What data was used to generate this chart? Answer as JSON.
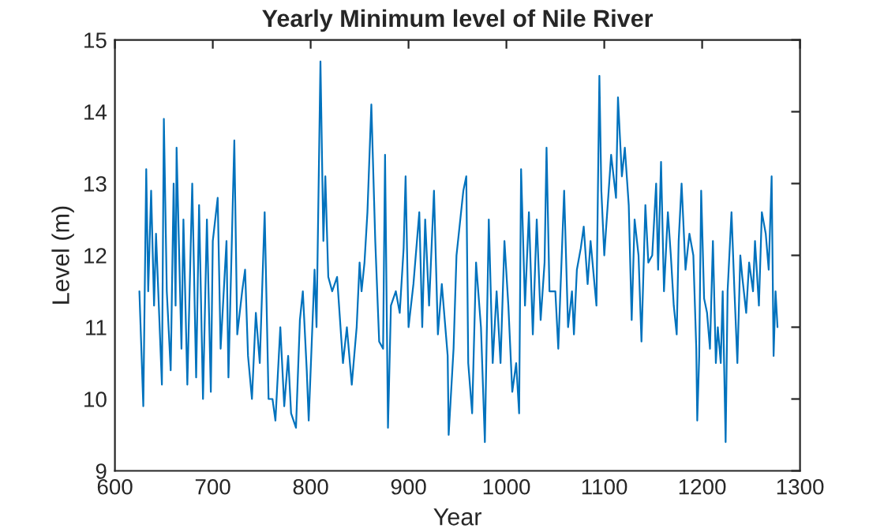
{
  "chart_data": {
    "type": "line",
    "title": "Yearly Minimum level of Nile River",
    "xlabel": "Year",
    "ylabel": "Level (m)",
    "xlim": [
      600,
      1300
    ],
    "xticks": [
      600,
      700,
      800,
      900,
      1000,
      1100,
      1200,
      1300
    ],
    "ylim": [
      9,
      15
    ],
    "yticks": [
      9,
      10,
      11,
      12,
      13,
      14,
      15
    ],
    "grid": false,
    "legend": false,
    "marker": "none",
    "line_style": "solid",
    "series": [
      {
        "color": "#0072bd",
        "x": [
          625,
          629,
          632,
          634,
          637,
          640,
          642,
          648,
          650,
          653,
          657,
          660,
          662,
          663,
          668,
          670,
          674,
          679,
          683,
          686,
          690,
          694,
          698,
          700,
          705,
          708,
          714,
          716,
          722,
          725,
          730,
          733,
          736,
          740,
          744,
          748,
          753,
          757,
          761,
          764,
          769,
          773,
          777,
          780,
          785,
          789,
          792,
          796,
          798,
          804,
          806,
          810,
          813,
          815,
          818,
          822,
          827,
          833,
          837,
          842,
          847,
          850,
          852,
          855,
          858,
          862,
          866,
          870,
          874,
          876,
          879,
          882,
          887,
          891,
          895,
          897,
          900,
          905,
          911,
          914,
          917,
          921,
          926,
          930,
          934,
          940,
          941,
          946,
          949,
          956,
          959,
          961,
          965,
          969,
          974,
          978,
          982,
          986,
          990,
          994,
          998,
          1002,
          1006,
          1010,
          1013,
          1015,
          1019,
          1023,
          1027,
          1031,
          1035,
          1039,
          1041,
          1044,
          1050,
          1053,
          1059,
          1063,
          1067,
          1069,
          1072,
          1076,
          1079,
          1083,
          1086,
          1092,
          1095,
          1097,
          1100,
          1104,
          1107,
          1112,
          1114,
          1118,
          1121,
          1125,
          1128,
          1131,
          1135,
          1138,
          1142,
          1145,
          1149,
          1153,
          1155,
          1158,
          1161,
          1165,
          1168,
          1171,
          1174,
          1176,
          1179,
          1183,
          1187,
          1191,
          1194,
          1195,
          1197,
          1199,
          1202,
          1205,
          1208,
          1211,
          1214,
          1216,
          1219,
          1221,
          1224,
          1226,
          1230,
          1233,
          1236,
          1239,
          1241,
          1245,
          1248,
          1252,
          1254,
          1258,
          1261,
          1265,
          1268,
          1271,
          1273,
          1275,
          1277
        ],
        "values": [
          11.5,
          9.9,
          13.2,
          11.5,
          12.9,
          11.3,
          12.3,
          10.2,
          13.9,
          11.5,
          10.4,
          13.0,
          11.3,
          13.5,
          10.7,
          12.5,
          10.2,
          13.0,
          10.3,
          12.7,
          10.0,
          12.5,
          10.1,
          12.2,
          12.8,
          10.7,
          12.2,
          10.3,
          13.6,
          10.9,
          11.5,
          11.8,
          10.6,
          10.0,
          11.2,
          10.5,
          12.6,
          10.0,
          10.0,
          9.7,
          11.0,
          9.9,
          10.6,
          9.8,
          9.6,
          11.1,
          11.5,
          10.4,
          9.7,
          11.8,
          11.0,
          14.7,
          12.2,
          13.1,
          11.7,
          11.5,
          11.7,
          10.5,
          11.0,
          10.2,
          11.0,
          11.9,
          11.5,
          11.9,
          12.6,
          14.1,
          12.2,
          10.8,
          10.7,
          13.4,
          9.6,
          11.3,
          11.5,
          11.2,
          12.1,
          13.1,
          11.0,
          11.6,
          12.6,
          11.0,
          12.5,
          11.3,
          12.9,
          10.9,
          11.6,
          10.6,
          9.5,
          10.7,
          12.0,
          12.9,
          13.1,
          10.5,
          9.8,
          11.9,
          11.0,
          9.4,
          12.5,
          10.5,
          11.5,
          10.5,
          12.2,
          11.3,
          10.1,
          10.5,
          9.8,
          13.2,
          11.3,
          12.6,
          10.9,
          12.5,
          11.1,
          11.9,
          13.5,
          11.5,
          11.5,
          10.7,
          12.9,
          11.0,
          11.5,
          10.9,
          11.8,
          12.1,
          12.4,
          11.6,
          12.2,
          11.3,
          14.5,
          12.9,
          12.0,
          12.8,
          13.4,
          12.8,
          14.2,
          13.1,
          13.5,
          12.7,
          11.1,
          12.5,
          12.0,
          10.8,
          12.7,
          11.9,
          12.0,
          13.0,
          11.8,
          13.3,
          11.5,
          12.6,
          12.0,
          11.3,
          10.9,
          12.2,
          13.0,
          11.8,
          12.3,
          12.0,
          10.7,
          9.7,
          10.6,
          12.9,
          11.4,
          11.2,
          10.7,
          12.2,
          10.5,
          11.0,
          10.5,
          11.5,
          9.4,
          11.5,
          12.6,
          11.5,
          10.5,
          12.0,
          11.7,
          11.2,
          11.9,
          11.5,
          12.2,
          11.3,
          12.6,
          12.3,
          11.8,
          13.1,
          10.6,
          11.5,
          11.0
        ]
      }
    ]
  }
}
